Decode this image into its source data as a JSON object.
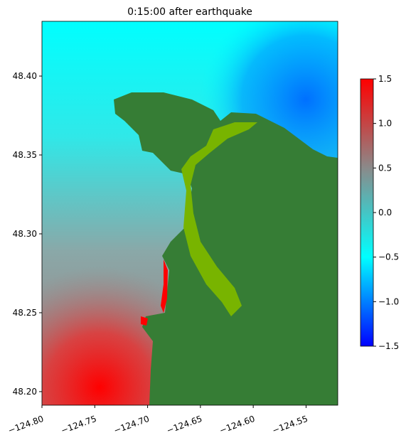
{
  "chart_data": {
    "type": "heatmap",
    "title": "0:15:00 after earthquake",
    "xlim": [
      -124.8,
      -124.52
    ],
    "xticks": [
      {
        "value": -124.8,
        "label": "−124.80"
      },
      {
        "value": -124.75,
        "label": "−124.75"
      },
      {
        "value": -124.7,
        "label": "−124.70"
      },
      {
        "value": -124.65,
        "label": "−124.65"
      },
      {
        "value": -124.6,
        "label": "−124.60"
      },
      {
        "value": -124.55,
        "label": "−124.55"
      }
    ],
    "ylim": [
      48.1914,
      48.4347
    ],
    "yticks": [
      {
        "value": 48.2,
        "label": "48.20"
      },
      {
        "value": 48.25,
        "label": "48.25"
      },
      {
        "value": 48.3,
        "label": "48.30"
      },
      {
        "value": 48.35,
        "label": "48.35"
      },
      {
        "value": 48.4,
        "label": "48.40"
      }
    ],
    "colorbar": {
      "lim": [
        -1.5,
        1.5
      ],
      "ticks": [
        {
          "value": -1.5,
          "label": "−1.5"
        },
        {
          "value": -1.0,
          "label": "−1.0"
        },
        {
          "value": -0.5,
          "label": "−0.5"
        },
        {
          "value": 0,
          "label": "0.0"
        },
        {
          "value": 0.5,
          "label": "0.5"
        },
        {
          "value": 1.0,
          "label": "1.0"
        },
        {
          "value": 1.5,
          "label": "1.5"
        }
      ],
      "colors": [
        "#0000ff",
        "#00ffff",
        "#8a8a8a",
        "#ff0000"
      ]
    }
  }
}
